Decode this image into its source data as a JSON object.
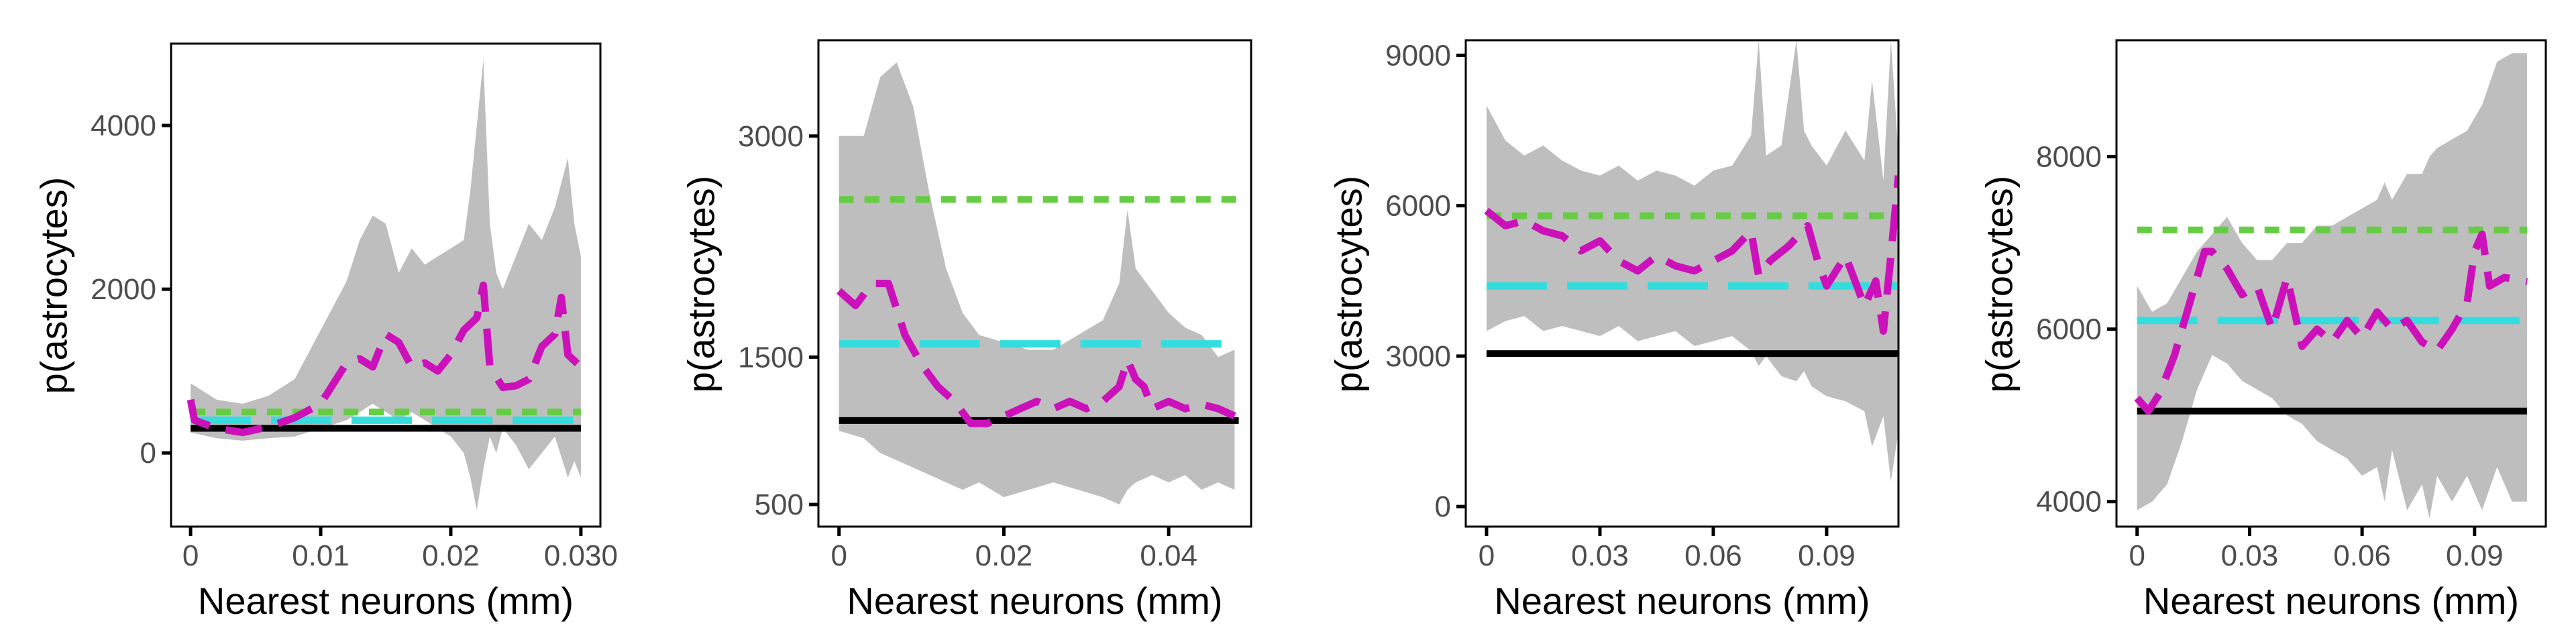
{
  "figure": {
    "background": "#ffffff"
  },
  "styles": {
    "band_color": "#bebebe",
    "black_line": "#000000",
    "cyan_line": "#33dddd",
    "green_line": "#66cc44",
    "magenta_line": "#cc11bb"
  },
  "chart_data": [
    {
      "type": "line",
      "ylabel": "p(astrocytes)",
      "xlabel": "Nearest neurons (mm)",
      "xlim": [
        -0.0015,
        0.0315
      ],
      "ylim": [
        -900,
        5000
      ],
      "xticks": [
        0,
        0.01,
        0.02,
        0.03
      ],
      "xtick_labels": [
        "0",
        "0.01",
        "0.02",
        "0.030"
      ],
      "yticks": [
        0,
        2000,
        4000
      ],
      "ytick_labels": [
        "0",
        "2000",
        "4000"
      ],
      "x_end": 0.03,
      "hlines": {
        "black": 300,
        "cyan": 400,
        "green": 500
      },
      "series": [
        {
          "x": [
            0,
            0.0003,
            0.002,
            0.004,
            0.006,
            0.008,
            0.01,
            0.012,
            0.013,
            0.014,
            0.015,
            0.016,
            0.017,
            0.018,
            0.019,
            0.02,
            0.021,
            0.022,
            0.0225,
            0.023,
            0.024,
            0.025,
            0.026,
            0.027,
            0.028,
            0.0285,
            0.029,
            0.03
          ],
          "y": [
            650,
            400,
            300,
            250,
            320,
            430,
            600,
            1100,
            1150,
            1050,
            1450,
            1350,
            1050,
            1100,
            1000,
            1200,
            1500,
            1650,
            2050,
            1050,
            800,
            820,
            900,
            1300,
            1450,
            1900,
            1200,
            1050
          ]
        }
      ],
      "band": {
        "x": [
          0,
          0.002,
          0.004,
          0.006,
          0.008,
          0.01,
          0.012,
          0.013,
          0.014,
          0.015,
          0.016,
          0.017,
          0.018,
          0.019,
          0.02,
          0.021,
          0.0215,
          0.022,
          0.0225,
          0.023,
          0.0235,
          0.024,
          0.025,
          0.026,
          0.027,
          0.028,
          0.029,
          0.0295,
          0.03
        ],
        "upper": [
          850,
          650,
          600,
          700,
          900,
          1500,
          2100,
          2600,
          2900,
          2800,
          2200,
          2500,
          2300,
          2400,
          2500,
          2600,
          3200,
          4000,
          4800,
          2800,
          2200,
          2000,
          2400,
          2800,
          2600,
          3000,
          3600,
          2800,
          2400
        ],
        "lower": [
          250,
          180,
          150,
          180,
          200,
          300,
          400,
          500,
          600,
          500,
          400,
          500,
          400,
          300,
          200,
          0,
          -300,
          -700,
          -200,
          200,
          0,
          300,
          100,
          -200,
          0,
          200,
          -300,
          -100,
          -300
        ]
      }
    },
    {
      "type": "line",
      "ylabel": "p(astrocytes)",
      "xlabel": "Nearest neurons (mm)",
      "xlim": [
        -0.0025,
        0.05
      ],
      "ylim": [
        350,
        3650
      ],
      "xticks": [
        0,
        0.02,
        0.04
      ],
      "xtick_labels": [
        "0",
        "0.02",
        "0.04"
      ],
      "yticks": [
        500,
        1500,
        3000
      ],
      "ytick_labels": [
        "500",
        "1500",
        "3000"
      ],
      "x_end": 0.0485,
      "hlines": {
        "black": 1070,
        "cyan": 1590,
        "green": 2570
      },
      "series": [
        {
          "x": [
            0,
            0.002,
            0.004,
            0.006,
            0.008,
            0.01,
            0.012,
            0.014,
            0.016,
            0.018,
            0.02,
            0.022,
            0.024,
            0.026,
            0.028,
            0.03,
            0.032,
            0.034,
            0.035,
            0.036,
            0.037,
            0.038,
            0.04,
            0.042,
            0.044,
            0.046,
            0.048
          ],
          "y": [
            1950,
            1850,
            2000,
            2000,
            1650,
            1450,
            1300,
            1200,
            1050,
            1050,
            1100,
            1150,
            1200,
            1150,
            1200,
            1150,
            1200,
            1300,
            1480,
            1350,
            1300,
            1150,
            1200,
            1150,
            1180,
            1150,
            1100
          ]
        }
      ],
      "band": {
        "x": [
          0,
          0.003,
          0.005,
          0.007,
          0.009,
          0.011,
          0.013,
          0.015,
          0.017,
          0.02,
          0.023,
          0.026,
          0.029,
          0.032,
          0.034,
          0.035,
          0.036,
          0.038,
          0.04,
          0.042,
          0.044,
          0.046,
          0.048
        ],
        "upper": [
          3000,
          3000,
          3400,
          3500,
          3200,
          2600,
          2100,
          1800,
          1650,
          1600,
          1550,
          1550,
          1650,
          1750,
          2000,
          2500,
          2100,
          1950,
          1800,
          1700,
          1650,
          1500,
          1550
        ],
        "lower": [
          1000,
          950,
          850,
          800,
          750,
          700,
          650,
          600,
          650,
          550,
          600,
          650,
          600,
          550,
          500,
          600,
          650,
          700,
          650,
          700,
          600,
          650,
          600
        ]
      }
    },
    {
      "type": "line",
      "ylabel": "p(astrocytes)",
      "xlabel": "Nearest neurons (mm)",
      "xlim": [
        -0.0055,
        0.109
      ],
      "ylim": [
        -400,
        9300
      ],
      "xticks": [
        0,
        0.03,
        0.06,
        0.09
      ],
      "xtick_labels": [
        "0",
        "0.03",
        "0.06",
        "0.09"
      ],
      "yticks": [
        0,
        3000,
        6000,
        9000
      ],
      "ytick_labels": [
        "0",
        "3000",
        "6000",
        "9000"
      ],
      "x_end": 0.109,
      "hlines": {
        "black": 3050,
        "cyan": 4400,
        "green": 5800
      },
      "series": [
        {
          "x": [
            0,
            0.005,
            0.01,
            0.015,
            0.02,
            0.025,
            0.03,
            0.035,
            0.04,
            0.045,
            0.05,
            0.055,
            0.06,
            0.065,
            0.07,
            0.072,
            0.075,
            0.08,
            0.085,
            0.088,
            0.09,
            0.095,
            0.1,
            0.103,
            0.105,
            0.107,
            0.109
          ],
          "y": [
            5900,
            5600,
            5700,
            5500,
            5400,
            5100,
            5300,
            4900,
            4700,
            5000,
            4800,
            4700,
            4900,
            5100,
            5500,
            4600,
            4900,
            5200,
            5600,
            4800,
            4400,
            5000,
            4000,
            4500,
            3500,
            5000,
            6600
          ]
        }
      ],
      "band": {
        "x": [
          0,
          0.005,
          0.01,
          0.015,
          0.02,
          0.025,
          0.03,
          0.035,
          0.04,
          0.045,
          0.05,
          0.055,
          0.06,
          0.065,
          0.07,
          0.072,
          0.074,
          0.078,
          0.082,
          0.084,
          0.086,
          0.09,
          0.095,
          0.1,
          0.102,
          0.105,
          0.107,
          0.109
        ],
        "upper": [
          8000,
          7300,
          7000,
          7200,
          6900,
          6700,
          6600,
          6800,
          6500,
          6700,
          6600,
          6400,
          6700,
          6800,
          7400,
          9300,
          7000,
          7200,
          9300,
          7500,
          7200,
          6800,
          7500,
          6900,
          8500,
          6500,
          9300,
          7000
        ],
        "lower": [
          3500,
          3700,
          3800,
          3500,
          3600,
          3500,
          3400,
          3600,
          3300,
          3400,
          3500,
          3200,
          3300,
          3400,
          3100,
          2800,
          3000,
          2600,
          2500,
          2700,
          2400,
          2200,
          2100,
          1900,
          1200,
          1800,
          500,
          1500
        ]
      }
    },
    {
      "type": "line",
      "ylabel": "p(astrocytes)",
      "xlabel": "Nearest neurons (mm)",
      "xlim": [
        -0.0055,
        0.109
      ],
      "ylim": [
        3710,
        9350
      ],
      "xticks": [
        0,
        0.03,
        0.06,
        0.09
      ],
      "xtick_labels": [
        "0",
        "0.03",
        "0.06",
        "0.09"
      ],
      "yticks": [
        4000,
        6000,
        8000
      ],
      "ytick_labels": [
        "4000",
        "6000",
        "8000"
      ],
      "x_end": 0.104,
      "hlines": {
        "black": 5050,
        "cyan": 6100,
        "green": 7150
      },
      "series": [
        {
          "x": [
            0,
            0.003,
            0.006,
            0.01,
            0.014,
            0.018,
            0.02,
            0.024,
            0.028,
            0.032,
            0.036,
            0.04,
            0.044,
            0.048,
            0.052,
            0.056,
            0.06,
            0.064,
            0.068,
            0.072,
            0.076,
            0.08,
            0.084,
            0.088,
            0.09,
            0.092,
            0.094,
            0.098,
            0.104
          ],
          "y": [
            5200,
            5050,
            5250,
            5700,
            6300,
            6900,
            6900,
            6700,
            6400,
            6500,
            6000,
            6600,
            5800,
            6000,
            5850,
            6100,
            5900,
            6200,
            6000,
            6100,
            5850,
            5750,
            6000,
            6300,
            6900,
            7100,
            6500,
            6600,
            6550
          ]
        }
      ],
      "band": {
        "x": [
          0,
          0.004,
          0.008,
          0.012,
          0.016,
          0.02,
          0.024,
          0.028,
          0.032,
          0.036,
          0.04,
          0.044,
          0.048,
          0.052,
          0.056,
          0.06,
          0.064,
          0.066,
          0.068,
          0.072,
          0.076,
          0.078,
          0.08,
          0.084,
          0.088,
          0.092,
          0.096,
          0.1,
          0.104
        ],
        "upper": [
          6500,
          6200,
          6300,
          6600,
          6900,
          7100,
          7300,
          7000,
          6800,
          6800,
          7000,
          7000,
          7200,
          7200,
          7300,
          7400,
          7500,
          7700,
          7500,
          7800,
          7800,
          8000,
          8100,
          8200,
          8300,
          8600,
          9100,
          9200,
          9200
        ],
        "lower": [
          3900,
          4000,
          4200,
          4700,
          5300,
          5700,
          5600,
          5400,
          5300,
          5200,
          5000,
          4900,
          4700,
          4600,
          4500,
          4300,
          4400,
          4000,
          4600,
          3900,
          4200,
          3800,
          4300,
          4000,
          4300,
          3900,
          4400,
          4000,
          4000
        ]
      }
    }
  ]
}
